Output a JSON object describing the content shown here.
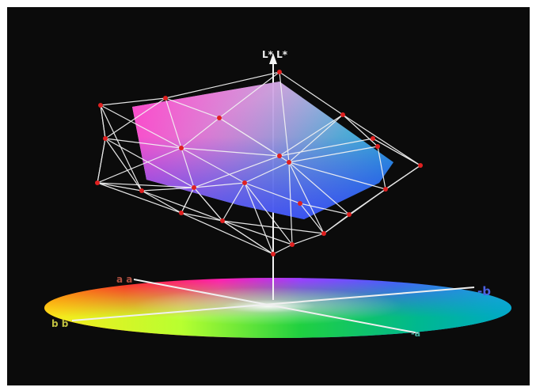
{
  "colors": {
    "background": "#0b0b0b",
    "frame": "#ffffff",
    "wireframe": "#f2f2f2",
    "vertex": "#e02020"
  },
  "labels": {
    "top": "L* L*",
    "left": "a a",
    "right": "-b",
    "bottom_left": "b b",
    "bottom_right": "-a"
  }
}
